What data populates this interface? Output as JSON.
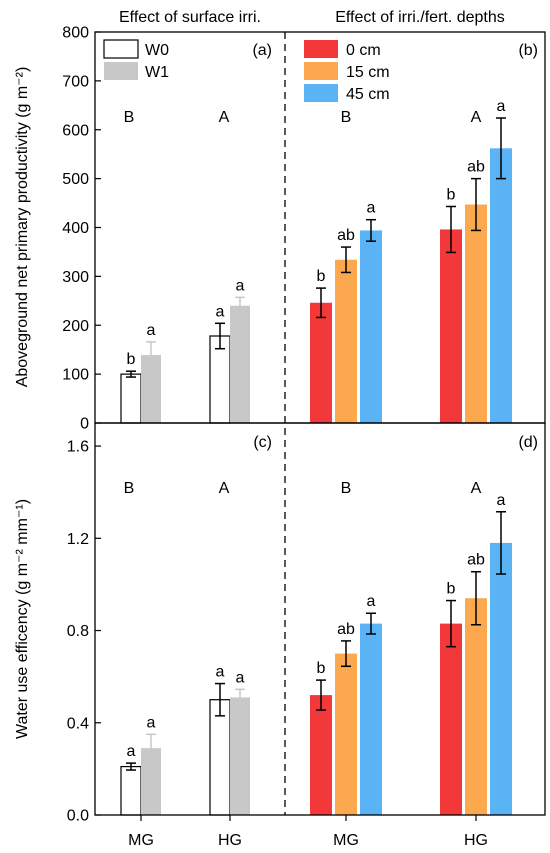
{
  "figure": {
    "panel_titles": {
      "left": "Effect of surface irri.",
      "right": "Effect of  irri./fert. depths"
    },
    "x_tick_labels": [
      "MG",
      "HG",
      "MG",
      "HG"
    ],
    "colors": {
      "W0": "#ffffff",
      "W1": "#c8c8c8",
      "0 cm": "#f23838",
      "15 cm": "#fba84f",
      "45 cm": "#5ab3f4",
      "W1_error": "#c8c8c8",
      "default_error": "#000000"
    }
  },
  "chart_data": [
    {
      "type": "bar",
      "panel": "(a)",
      "ylabel": "Aboveground net primary productivity (g m⁻²)",
      "ylim": [
        0,
        800
      ],
      "yticks": [
        0,
        100,
        200,
        300,
        400,
        500,
        600,
        700,
        800
      ],
      "categories": [
        "MG",
        "HG"
      ],
      "group_letters": [
        "B",
        "A"
      ],
      "legend": {
        "position": "top-left",
        "entries": [
          "W0",
          "W1"
        ]
      },
      "series": [
        {
          "name": "W0",
          "values": [
            100,
            178
          ],
          "errors": [
            6,
            26
          ],
          "letters": [
            "b",
            "a"
          ]
        },
        {
          "name": "W1",
          "values": [
            139,
            240
          ],
          "errors": [
            27,
            17
          ],
          "letters": [
            "a",
            "a"
          ]
        }
      ]
    },
    {
      "type": "bar",
      "panel": "(b)",
      "ylim": [
        0,
        800
      ],
      "categories": [
        "MG",
        "HG"
      ],
      "group_letters": [
        "B",
        "A"
      ],
      "legend": {
        "position": "top-left",
        "entries": [
          "0 cm",
          "15 cm",
          "45 cm"
        ]
      },
      "series": [
        {
          "name": "0 cm",
          "values": [
            246,
            396
          ],
          "errors": [
            30,
            47
          ],
          "letters": [
            "b",
            "b"
          ]
        },
        {
          "name": "15 cm",
          "values": [
            334,
            447
          ],
          "errors": [
            26,
            53
          ],
          "letters": [
            "ab",
            "ab"
          ]
        },
        {
          "name": "45 cm",
          "values": [
            394,
            562
          ],
          "errors": [
            22,
            62
          ],
          "letters": [
            "a",
            "a"
          ]
        }
      ]
    },
    {
      "type": "bar",
      "panel": "(c)",
      "ylabel": "Water use efficency (g m⁻² mm⁻¹)",
      "ylim": [
        0,
        1.7
      ],
      "yticks": [
        "0.0",
        "0.4",
        "0.8",
        "1.2",
        "1.6"
      ],
      "categories": [
        "MG",
        "HG"
      ],
      "group_letters": [
        "B",
        "A"
      ],
      "series": [
        {
          "name": "W0",
          "values": [
            0.21,
            0.5
          ],
          "errors": [
            0.015,
            0.07
          ],
          "letters": [
            "a",
            "a"
          ]
        },
        {
          "name": "W1",
          "values": [
            0.29,
            0.51
          ],
          "errors": [
            0.06,
            0.035
          ],
          "letters": [
            "a",
            "a"
          ]
        }
      ]
    },
    {
      "type": "bar",
      "panel": "(d)",
      "ylim": [
        0,
        1.7
      ],
      "categories": [
        "MG",
        "HG"
      ],
      "group_letters": [
        "B",
        "A"
      ],
      "series": [
        {
          "name": "0 cm",
          "values": [
            0.52,
            0.83
          ],
          "errors": [
            0.065,
            0.1
          ],
          "letters": [
            "b",
            "b"
          ]
        },
        {
          "name": "15 cm",
          "values": [
            0.7,
            0.94
          ],
          "errors": [
            0.055,
            0.115
          ],
          "letters": [
            "ab",
            "ab"
          ]
        },
        {
          "name": "45 cm",
          "values": [
            0.83,
            1.18
          ],
          "errors": [
            0.045,
            0.135
          ],
          "letters": [
            "a",
            "a"
          ]
        }
      ]
    }
  ]
}
